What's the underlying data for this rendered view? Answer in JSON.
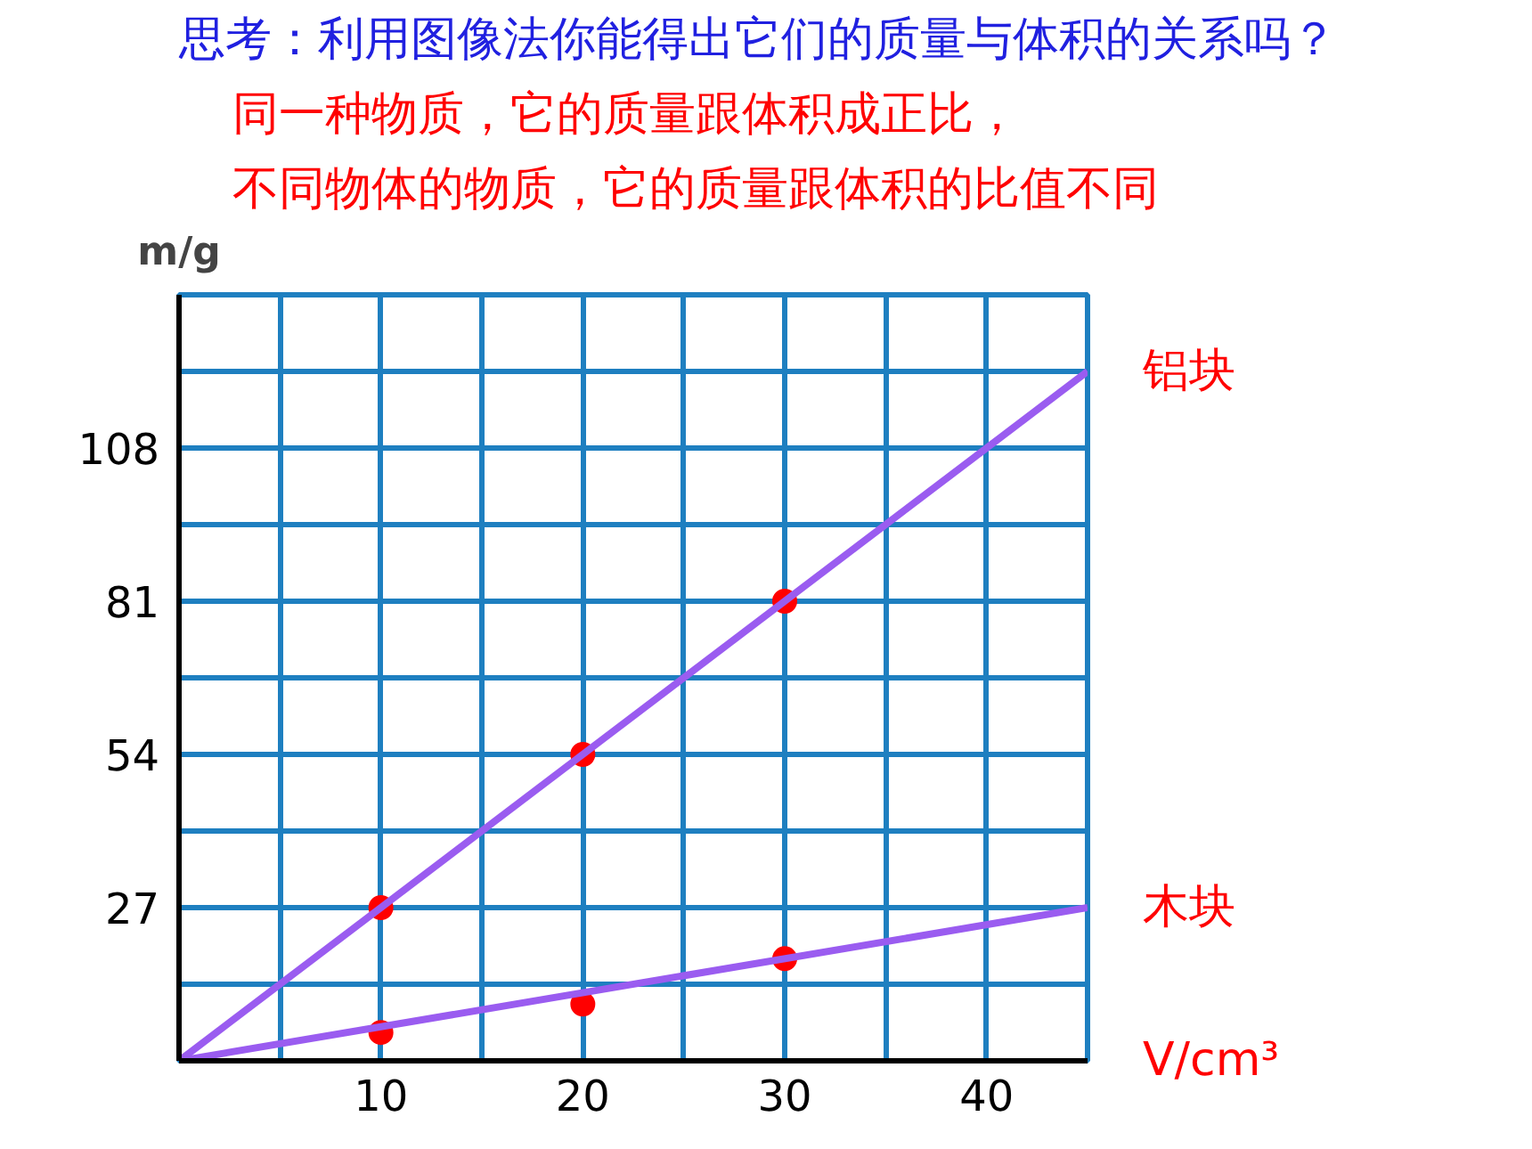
{
  "chart_data": {
    "type": "scatter",
    "title": "思考：利用图像法你能得出它们的质量与体积的关系吗？",
    "annotations": [
      "同一种物质，它的质量跟体积成正比，",
      "不同物体的物质，它的质量跟体积的比值不同"
    ],
    "xlabel": "V/cm³",
    "ylabel": "m/g",
    "xlim": [
      0,
      45
    ],
    "ylim": [
      0,
      135
    ],
    "xticks": [
      {
        "value": 5,
        "label": null
      },
      10,
      {
        "value": 15,
        "label": null
      },
      20,
      {
        "value": 25,
        "label": null
      },
      30,
      {
        "value": 35,
        "label": null
      },
      40,
      {
        "value": 45,
        "label": null
      }
    ],
    "yticks": [
      {
        "value": 13.5,
        "label": null
      },
      27,
      {
        "value": 40.5,
        "label": null
      },
      54,
      {
        "value": 67.5,
        "label": null
      },
      81,
      {
        "value": 94.5,
        "label": null
      },
      108,
      {
        "value": 121.5,
        "label": null
      },
      {
        "value": 135,
        "label": null
      }
    ],
    "grid": true,
    "marker": "circle",
    "series": [
      {
        "color": "#ff0000",
        "x": [
          10,
          20,
          30
        ],
        "values": [
          27,
          54,
          81
        ]
      },
      {
        "color": "#ff0000",
        "x": [
          10,
          20,
          30
        ],
        "values": [
          5,
          10,
          18
        ]
      },
      {
        "type": "line",
        "marker": "none",
        "name": "铝块",
        "color": "#9a5cf0",
        "x": [
          0,
          45
        ],
        "values": [
          0,
          121.5
        ]
      },
      {
        "type": "line",
        "marker": "none",
        "name": "木块",
        "color": "#9a5cf0",
        "x": [
          0,
          45
        ],
        "values": [
          0,
          27
        ]
      }
    ]
  }
}
